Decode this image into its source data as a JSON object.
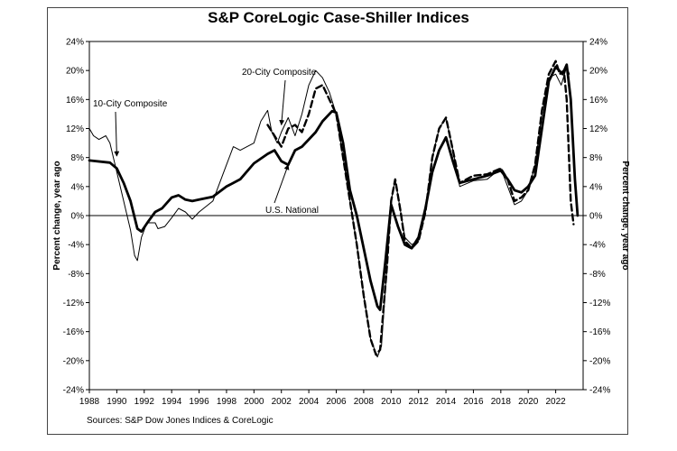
{
  "chart_data": {
    "type": "line",
    "title": "S&P CoreLogic Case-Shiller Indices",
    "ylabel": "Percent change, year ago",
    "ylabel_right": "Percent change, year ago",
    "source": "Sources: S&P Dow Jones Indices & CoreLogic",
    "xlim": [
      1988,
      2024
    ],
    "ylim": [
      -24,
      24
    ],
    "x_ticks": [
      "1988",
      "1990",
      "1992",
      "1994",
      "1996",
      "1998",
      "2000",
      "2002",
      "2004",
      "2006",
      "2008",
      "2010",
      "2012",
      "2014",
      "2016",
      "2018",
      "2020",
      "2022"
    ],
    "y_ticks": [
      "-24%",
      "-20%",
      "-16%",
      "-12%",
      "-8%",
      "-4%",
      "0%",
      "4%",
      "8%",
      "12%",
      "16%",
      "20%",
      "24%"
    ],
    "grid": false,
    "series": [
      {
        "name": "U.S. National",
        "style": "thick-solid",
        "color": "#000000",
        "points": [
          [
            1988,
            7.6
          ],
          [
            1989.5,
            7.3
          ],
          [
            1990,
            6.5
          ],
          [
            1990.5,
            4.5
          ],
          [
            1991,
            2.0
          ],
          [
            1991.5,
            -1.8
          ],
          [
            1991.8,
            -2.2
          ],
          [
            1992.3,
            -0.8
          ],
          [
            1992.8,
            0.5
          ],
          [
            1993.3,
            1.0
          ],
          [
            1994,
            2.5
          ],
          [
            1994.5,
            2.8
          ],
          [
            1995,
            2.2
          ],
          [
            1995.5,
            2.0
          ],
          [
            1996,
            2.2
          ],
          [
            1997,
            2.6
          ],
          [
            1998,
            4.0
          ],
          [
            1999,
            5.0
          ],
          [
            2000,
            7.2
          ],
          [
            2001,
            8.5
          ],
          [
            2001.5,
            9.0
          ],
          [
            2002,
            7.5
          ],
          [
            2002.5,
            7.0
          ],
          [
            2003,
            9.0
          ],
          [
            2003.5,
            9.5
          ],
          [
            2004,
            10.5
          ],
          [
            2004.5,
            11.5
          ],
          [
            2005,
            13.0
          ],
          [
            2005.7,
            14.4
          ],
          [
            2006,
            14.2
          ],
          [
            2006.5,
            10.0
          ],
          [
            2007,
            3.5
          ],
          [
            2007.5,
            0.0
          ],
          [
            2008,
            -4.5
          ],
          [
            2008.5,
            -9.0
          ],
          [
            2009,
            -12.5
          ],
          [
            2009.2,
            -13.0
          ],
          [
            2009.6,
            -6.0
          ],
          [
            2010,
            1.5
          ],
          [
            2010.5,
            -1.5
          ],
          [
            2011,
            -4.0
          ],
          [
            2011.5,
            -4.5
          ],
          [
            2012,
            -3.0
          ],
          [
            2012.5,
            1.0
          ],
          [
            2013,
            6.0
          ],
          [
            2013.5,
            9.0
          ],
          [
            2014,
            10.8
          ],
          [
            2014.5,
            7.5
          ],
          [
            2015,
            4.5
          ],
          [
            2016,
            5.0
          ],
          [
            2017,
            5.5
          ],
          [
            2018,
            6.2
          ],
          [
            2018.5,
            5.0
          ],
          [
            2019,
            3.5
          ],
          [
            2019.5,
            3.2
          ],
          [
            2020,
            4.0
          ],
          [
            2020.5,
            5.5
          ],
          [
            2021,
            12.0
          ],
          [
            2021.5,
            18.5
          ],
          [
            2022,
            20.5
          ],
          [
            2022.5,
            19.5
          ],
          [
            2022.8,
            20.8
          ],
          [
            2023.1,
            16.0
          ],
          [
            2023.4,
            5.0
          ],
          [
            2023.6,
            0.0
          ]
        ]
      },
      {
        "name": "10-City Composite",
        "style": "thin-solid",
        "color": "#000000",
        "points": [
          [
            1988,
            12.0
          ],
          [
            1988.3,
            11.0
          ],
          [
            1988.7,
            10.5
          ],
          [
            1989.2,
            11.0
          ],
          [
            1989.5,
            10.0
          ],
          [
            1990,
            6.0
          ],
          [
            1990.5,
            2.0
          ],
          [
            1991,
            -2.0
          ],
          [
            1991.3,
            -5.5
          ],
          [
            1991.5,
            -6.2
          ],
          [
            1991.8,
            -3.0
          ],
          [
            1992.2,
            -1.0
          ],
          [
            1992.8,
            -1.0
          ],
          [
            1993,
            -1.8
          ],
          [
            1993.5,
            -1.5
          ],
          [
            1994,
            -0.3
          ],
          [
            1994.5,
            1.0
          ],
          [
            1995,
            0.5
          ],
          [
            1995.5,
            -0.5
          ],
          [
            1996,
            0.5
          ],
          [
            1997,
            2.0
          ],
          [
            1998,
            7.0
          ],
          [
            1998.5,
            9.5
          ],
          [
            1999,
            9.0
          ],
          [
            2000,
            10.0
          ],
          [
            2000.5,
            13.0
          ],
          [
            2001,
            14.5
          ],
          [
            2001.3,
            11.5
          ],
          [
            2001.7,
            10.0
          ],
          [
            2002,
            11.5
          ],
          [
            2002.5,
            13.5
          ],
          [
            2003,
            11.0
          ],
          [
            2003.5,
            14.0
          ],
          [
            2004,
            18.0
          ],
          [
            2004.5,
            20.0
          ],
          [
            2005,
            19.0
          ],
          [
            2005.5,
            17.0
          ],
          [
            2006,
            14.0
          ],
          [
            2006.5,
            8.0
          ],
          [
            2007,
            2.0
          ],
          [
            2007.5,
            -4.0
          ],
          [
            2008,
            -11.0
          ],
          [
            2008.5,
            -17.0
          ],
          [
            2009,
            -19.5
          ],
          [
            2009.3,
            -18.0
          ],
          [
            2009.7,
            -7.0
          ],
          [
            2010,
            2.0
          ],
          [
            2010.3,
            5.0
          ],
          [
            2010.7,
            0.5
          ],
          [
            2011,
            -3.0
          ],
          [
            2011.5,
            -4.0
          ],
          [
            2012,
            -3.5
          ],
          [
            2012.5,
            0.5
          ],
          [
            2013,
            8.0
          ],
          [
            2013.5,
            12.0
          ],
          [
            2014,
            13.5
          ],
          [
            2014.5,
            9.0
          ],
          [
            2015,
            4.0
          ],
          [
            2016,
            4.8
          ],
          [
            2017,
            5.0
          ],
          [
            2018,
            6.5
          ],
          [
            2018.5,
            4.0
          ],
          [
            2019,
            1.5
          ],
          [
            2019.5,
            2.0
          ],
          [
            2020,
            3.5
          ],
          [
            2020.5,
            7.0
          ],
          [
            2021,
            14.0
          ],
          [
            2021.5,
            19.0
          ],
          [
            2022,
            19.5
          ],
          [
            2022.4,
            18.0
          ],
          [
            2022.8,
            20.5
          ],
          [
            2023,
            19.5
          ]
        ]
      },
      {
        "name": "20-City Composite",
        "style": "thick-dashed",
        "color": "#000000",
        "points": [
          [
            2001,
            12.5
          ],
          [
            2001.5,
            11.0
          ],
          [
            2002,
            9.5
          ],
          [
            2002.5,
            12.0
          ],
          [
            2003,
            12.5
          ],
          [
            2003.5,
            11.5
          ],
          [
            2004,
            14.0
          ],
          [
            2004.5,
            17.5
          ],
          [
            2005,
            18.0
          ],
          [
            2005.5,
            16.0
          ],
          [
            2006,
            14.0
          ],
          [
            2006.5,
            8.0
          ],
          [
            2007,
            2.0
          ],
          [
            2007.5,
            -4.0
          ],
          [
            2008,
            -11.0
          ],
          [
            2008.5,
            -17.0
          ],
          [
            2008.9,
            -19.2
          ],
          [
            2009.2,
            -18.5
          ],
          [
            2009.7,
            -7.0
          ],
          [
            2010,
            2.0
          ],
          [
            2010.3,
            5.0
          ],
          [
            2010.7,
            0.5
          ],
          [
            2011,
            -3.5
          ],
          [
            2011.5,
            -4.5
          ],
          [
            2012,
            -3.5
          ],
          [
            2012.5,
            0.5
          ],
          [
            2013,
            8.0
          ],
          [
            2013.5,
            12.0
          ],
          [
            2014,
            13.5
          ],
          [
            2014.5,
            9.0
          ],
          [
            2015,
            4.5
          ],
          [
            2015.5,
            5.0
          ],
          [
            2016,
            5.5
          ],
          [
            2017,
            5.7
          ],
          [
            2018,
            6.5
          ],
          [
            2018.5,
            5.0
          ],
          [
            2019,
            2.0
          ],
          [
            2019.5,
            2.5
          ],
          [
            2020,
            3.5
          ],
          [
            2020.5,
            7.0
          ],
          [
            2021,
            14.5
          ],
          [
            2021.5,
            19.5
          ],
          [
            2022,
            21.3
          ],
          [
            2022.3,
            19.5
          ],
          [
            2022.6,
            20.0
          ],
          [
            2022.8,
            16.0
          ],
          [
            2023.1,
            2.0
          ],
          [
            2023.3,
            -1.2
          ]
        ]
      }
    ],
    "annotations": [
      {
        "text": "10-City Composite",
        "target": [
          1990,
          8.2
        ]
      },
      {
        "text": "20-City Composite",
        "target": [
          2002,
          12.5
        ]
      },
      {
        "text": "U.S. National",
        "target": [
          2002.5,
          7.0
        ]
      }
    ]
  }
}
